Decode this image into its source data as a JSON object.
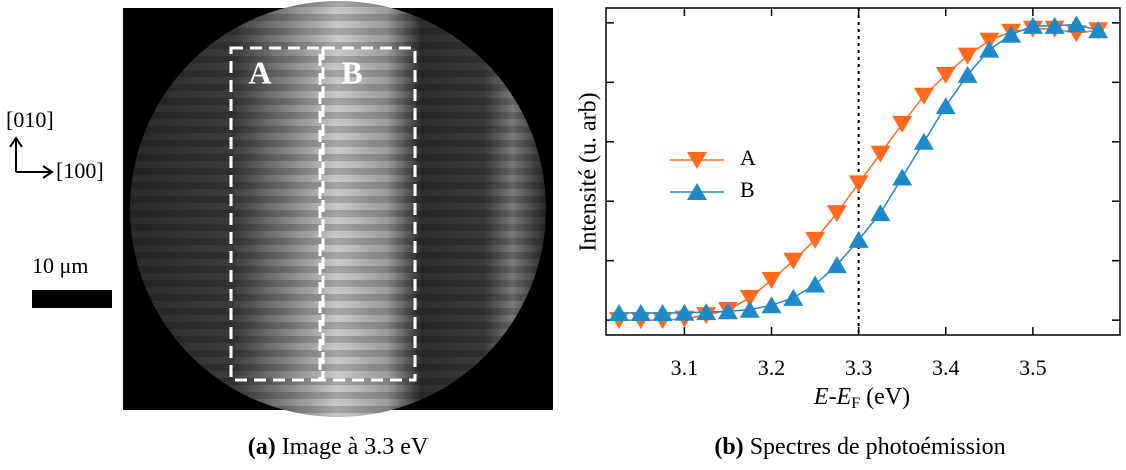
{
  "panel_a": {
    "region_labels": [
      "A",
      "B"
    ],
    "axis_labels": [
      "[010]",
      "[100]"
    ],
    "scale_label": "10 μm"
  },
  "captions": [
    {
      "label": "(a)",
      "text": "Image à 3.3 eV"
    },
    {
      "label": "(b)",
      "text": "Spectres de photoémission"
    }
  ],
  "chart_data": {
    "type": "line",
    "ylabel": "Intensité (u. arb)",
    "xlabel": {
      "var": "E-E",
      "subscript": "F",
      "unit": "(eV)"
    },
    "x": [
      3.025,
      3.05,
      3.075,
      3.1,
      3.125,
      3.15,
      3.175,
      3.2,
      3.225,
      3.25,
      3.275,
      3.3,
      3.325,
      3.35,
      3.375,
      3.4,
      3.425,
      3.45,
      3.475,
      3.5,
      3.525,
      3.55,
      3.575
    ],
    "series": [
      {
        "name": "A",
        "color": "#ff6a1f",
        "marker": "down",
        "values": [
          0.0,
          0.0,
          0.0,
          0.005,
          0.017,
          0.034,
          0.075,
          0.135,
          0.2,
          0.27,
          0.36,
          0.46,
          0.56,
          0.66,
          0.755,
          0.825,
          0.89,
          0.94,
          0.97,
          0.98,
          0.98,
          0.965,
          0.975
        ]
      },
      {
        "name": "B",
        "color": "#1f8ac9",
        "marker": "up",
        "values": [
          0.024,
          0.024,
          0.024,
          0.025,
          0.027,
          0.03,
          0.035,
          0.05,
          0.075,
          0.12,
          0.185,
          0.27,
          0.36,
          0.48,
          0.6,
          0.72,
          0.825,
          0.91,
          0.96,
          0.99,
          0.99,
          0.995,
          0.975
        ]
      }
    ],
    "xlim": [
      3.01,
      3.6
    ],
    "ylim": [
      -0.05,
      1.05
    ],
    "xticks": [
      3.1,
      3.2,
      3.3,
      3.4,
      3.5
    ],
    "yticks": [
      0,
      0.2,
      0.4,
      0.6,
      0.8,
      1.0
    ],
    "vline": 3.3,
    "legend": "left"
  }
}
